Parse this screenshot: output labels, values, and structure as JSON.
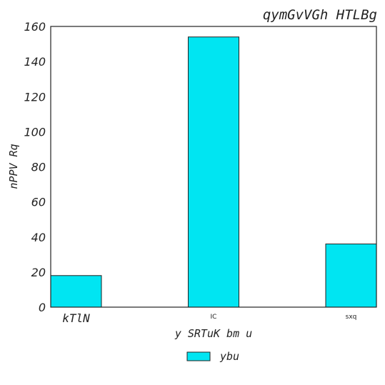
{
  "chart_data": {
    "type": "bar",
    "title": "qymGvVGh HTLBg",
    "xlabel": "y SRTuK bm u",
    "ylabel": "nPPV Rq",
    "categories": [
      "kTlN",
      "IC",
      "sxq"
    ],
    "series": [
      {
        "name": "ybu",
        "values": [
          18,
          154,
          36
        ]
      }
    ],
    "ylim": [
      0,
      160
    ],
    "yticks": [
      "0",
      "20",
      "40",
      "60",
      "80",
      "100",
      "120",
      "140",
      "160"
    ],
    "bar_color": "#00e5f2",
    "grid": false,
    "legend_position": "bottom-center"
  }
}
